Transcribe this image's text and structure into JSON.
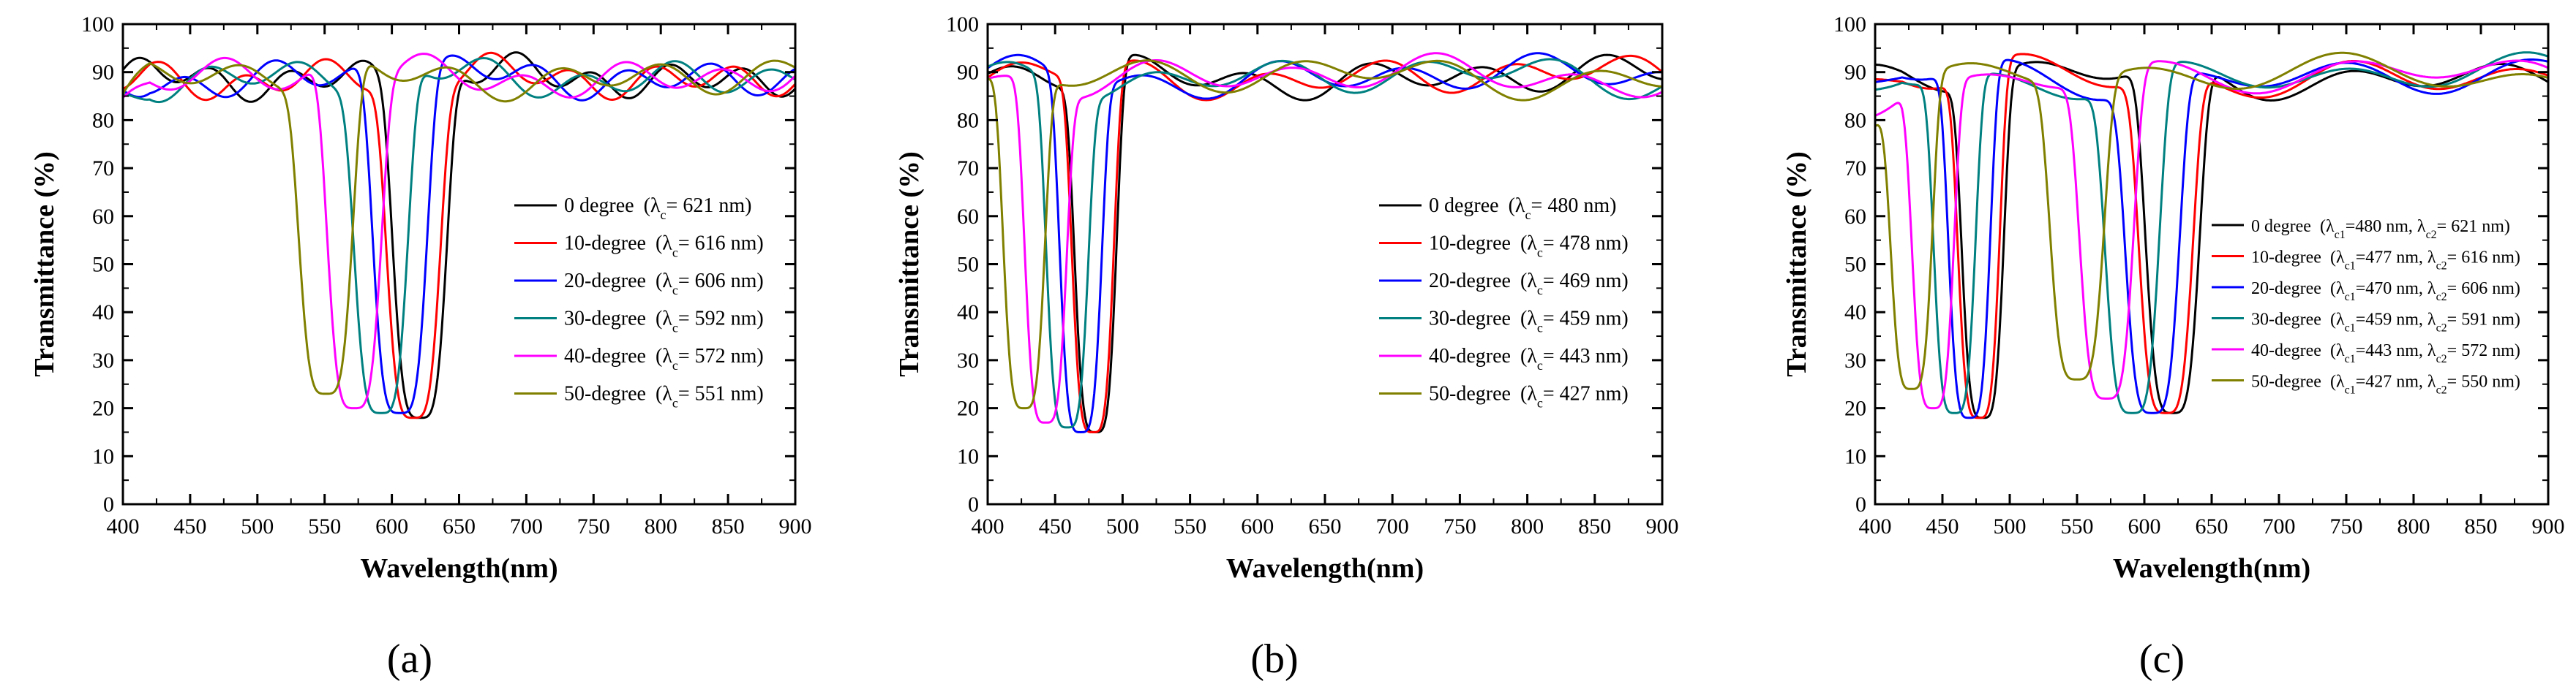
{
  "figure": {
    "panels": [
      {
        "id": "a",
        "label": "(a)"
      },
      {
        "id": "b",
        "label": "(b)"
      },
      {
        "id": "c",
        "label": "(c)"
      }
    ],
    "colors": [
      "#000000",
      "#ff0000",
      "#0000ff",
      "#008080",
      "#ff00ff",
      "#808000"
    ]
  },
  "chart_data": [
    {
      "type": "line",
      "panel_label": "(a)",
      "xlabel": "Wavelength(nm)",
      "ylabel": "Transmittance (%)",
      "xlim": [
        400,
        900
      ],
      "ylim": [
        0,
        100
      ],
      "xticks": [
        400,
        450,
        500,
        550,
        600,
        650,
        700,
        750,
        800,
        850,
        900
      ],
      "yticks": [
        0,
        10,
        20,
        30,
        40,
        50,
        60,
        70,
        80,
        90,
        100
      ],
      "legend_position": "center-right",
      "series": [
        {
          "name": "0 degree",
          "lambda": "621",
          "color": "#000000",
          "dips": [
            {
              "center": 621,
              "min": 18,
              "width": 22
            }
          ]
        },
        {
          "name": "10-degree",
          "lambda": "616",
          "color": "#ff0000",
          "dips": [
            {
              "center": 616,
              "min": 18,
              "width": 22
            }
          ]
        },
        {
          "name": "20-degree",
          "lambda": "606",
          "color": "#0000ff",
          "dips": [
            {
              "center": 606,
              "min": 19,
              "width": 22
            }
          ]
        },
        {
          "name": "30-degree",
          "lambda": "592",
          "color": "#008080",
          "dips": [
            {
              "center": 592,
              "min": 19,
              "width": 22
            }
          ]
        },
        {
          "name": "40-degree",
          "lambda": "572",
          "color": "#ff00ff",
          "dips": [
            {
              "center": 572,
              "min": 20,
              "width": 22
            }
          ]
        },
        {
          "name": "50-degree",
          "lambda": "551",
          "color": "#808000",
          "dips": [
            {
              "center": 551,
              "min": 23,
              "width": 22
            }
          ]
        }
      ]
    },
    {
      "type": "line",
      "panel_label": "(b)",
      "xlabel": "Wavelength(nm)",
      "ylabel": "Transmittance (%)",
      "xlim": [
        400,
        900
      ],
      "ylim": [
        0,
        100
      ],
      "xticks": [
        400,
        450,
        500,
        550,
        600,
        650,
        700,
        750,
        800,
        850,
        900
      ],
      "yticks": [
        0,
        10,
        20,
        30,
        40,
        50,
        60,
        70,
        80,
        90,
        100
      ],
      "legend_position": "center-right",
      "series": [
        {
          "name": "0 degree",
          "lambda": "480",
          "color": "#000000",
          "dips": [
            {
              "center": 480,
              "min": 15,
              "width": 17
            }
          ]
        },
        {
          "name": "10-degree",
          "lambda": "478",
          "color": "#ff0000",
          "dips": [
            {
              "center": 478,
              "min": 15,
              "width": 17
            }
          ]
        },
        {
          "name": "20-degree",
          "lambda": "469",
          "color": "#0000ff",
          "dips": [
            {
              "center": 469,
              "min": 15,
              "width": 17
            }
          ]
        },
        {
          "name": "30-degree",
          "lambda": "459",
          "color": "#008080",
          "dips": [
            {
              "center": 459,
              "min": 16,
              "width": 17
            }
          ]
        },
        {
          "name": "40-degree",
          "lambda": "443",
          "color": "#ff00ff",
          "dips": [
            {
              "center": 443,
              "min": 17,
              "width": 17
            }
          ]
        },
        {
          "name": "50-degree",
          "lambda": "427",
          "color": "#808000",
          "dips": [
            {
              "center": 427,
              "min": 20,
              "width": 17
            }
          ]
        }
      ]
    },
    {
      "type": "line",
      "panel_label": "(c)",
      "xlabel": "Wavelength(nm)",
      "ylabel": "Transmittance (%)",
      "xlim": [
        400,
        900
      ],
      "ylim": [
        0,
        100
      ],
      "xticks": [
        400,
        450,
        500,
        550,
        600,
        650,
        700,
        750,
        800,
        850,
        900
      ],
      "yticks": [
        0,
        10,
        20,
        30,
        40,
        50,
        60,
        70,
        80,
        90,
        100
      ],
      "legend_position": "center-right",
      "series": [
        {
          "name": "0 degree",
          "lambda1": "480",
          "lambda2": "621",
          "color": "#000000",
          "dips": [
            {
              "center": 480,
              "min": 18,
              "width": 17
            },
            {
              "center": 621,
              "min": 19,
              "width": 22
            }
          ]
        },
        {
          "name": "10-degree",
          "lambda1": "477",
          "lambda2": "616",
          "color": "#ff0000",
          "dips": [
            {
              "center": 477,
              "min": 18,
              "width": 17
            },
            {
              "center": 616,
              "min": 19,
              "width": 22
            }
          ]
        },
        {
          "name": "20-degree",
          "lambda1": "470",
          "lambda2": "606",
          "color": "#0000ff",
          "dips": [
            {
              "center": 470,
              "min": 18,
              "width": 17
            },
            {
              "center": 606,
              "min": 19,
              "width": 22
            }
          ]
        },
        {
          "name": "30-degree",
          "lambda1": "459",
          "lambda2": "591",
          "color": "#008080",
          "dips": [
            {
              "center": 459,
              "min": 19,
              "width": 17
            },
            {
              "center": 591,
              "min": 19,
              "width": 22
            }
          ]
        },
        {
          "name": "40-degree",
          "lambda1": "443",
          "lambda2": "572",
          "color": "#ff00ff",
          "dips": [
            {
              "center": 443,
              "min": 20,
              "width": 17
            },
            {
              "center": 572,
              "min": 22,
              "width": 22
            }
          ]
        },
        {
          "name": "50-degree",
          "lambda1": "427",
          "lambda2": "550",
          "color": "#808000",
          "dips": [
            {
              "center": 427,
              "min": 24,
              "width": 17
            },
            {
              "center": 550,
              "min": 26,
              "width": 22
            }
          ]
        }
      ]
    }
  ]
}
